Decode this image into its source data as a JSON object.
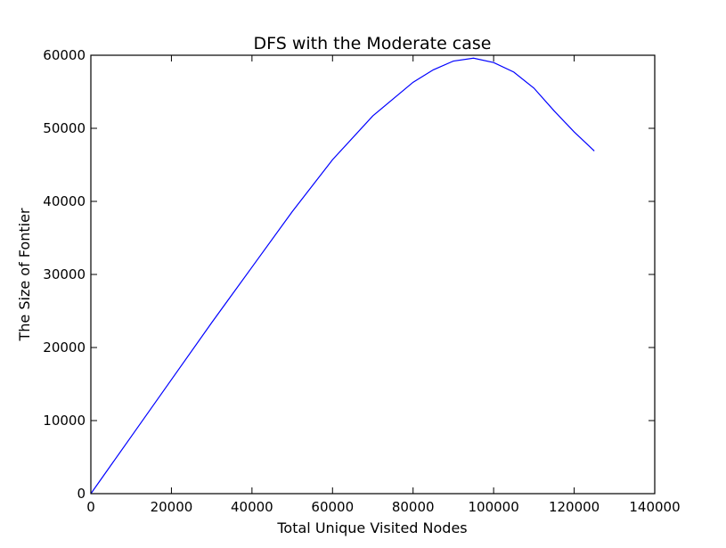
{
  "chart_data": {
    "type": "line",
    "title": "DFS with the Moderate case",
    "xlabel": "Total Unique Visited Nodes",
    "ylabel": "The Size of Fontier",
    "xlim": [
      0,
      140000
    ],
    "ylim": [
      0,
      60000
    ],
    "x_ticks": [
      0,
      20000,
      40000,
      60000,
      80000,
      100000,
      120000,
      140000
    ],
    "y_ticks": [
      0,
      10000,
      20000,
      30000,
      40000,
      50000,
      60000
    ],
    "x_tick_labels": [
      "0",
      "20000",
      "40000",
      "60000",
      "80000",
      "100000",
      "120000",
      "140000"
    ],
    "y_tick_labels": [
      "0",
      "10000",
      "20000",
      "30000",
      "40000",
      "50000",
      "60000"
    ],
    "grid": false,
    "line_color": "#0000ff",
    "series": [
      {
        "x": [
          0,
          10000,
          20000,
          30000,
          40000,
          50000,
          60000,
          70000,
          80000,
          85000,
          90000,
          95000,
          100000,
          105000,
          110000,
          115000,
          120000,
          125000
        ],
        "y": [
          0,
          7800,
          15600,
          23400,
          31000,
          38600,
          45700,
          51700,
          56300,
          58000,
          59200,
          59600,
          59000,
          57700,
          55500,
          52400,
          49500,
          46900
        ]
      }
    ]
  }
}
